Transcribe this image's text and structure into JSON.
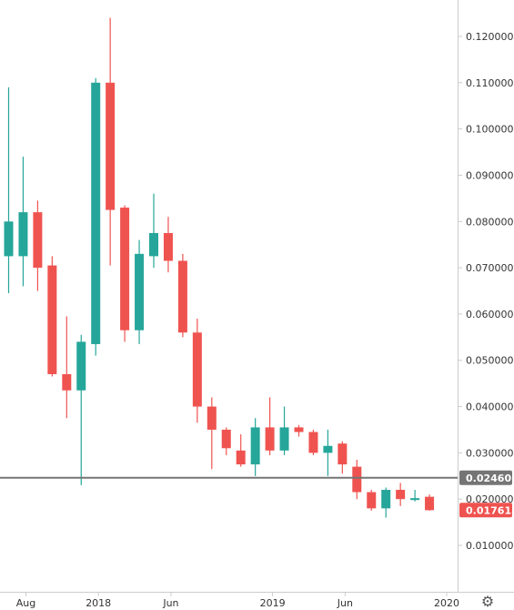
{
  "chart_data": {
    "type": "candlestick",
    "interval": "monthly",
    "ylim": [
      0.0,
      0.13
    ],
    "y_ticks": [
      "0.120000",
      "0.110000",
      "0.100000",
      "0.090000",
      "0.080000",
      "0.070000",
      "0.060000",
      "0.050000",
      "0.040000",
      "0.030000",
      "0.020000",
      "0.010000"
    ],
    "x_ticks": [
      {
        "label": "Aug",
        "index": 1
      },
      {
        "label": "2018",
        "index": 6
      },
      {
        "label": "Jun",
        "index": 11
      },
      {
        "label": "2019",
        "index": 18
      },
      {
        "label": "Jun",
        "index": 23
      },
      {
        "label": "2020",
        "index": 30
      }
    ],
    "candles": [
      {
        "o": 0.0725,
        "h": 0.109,
        "l": 0.0645,
        "c": 0.08
      },
      {
        "o": 0.0725,
        "h": 0.094,
        "l": 0.066,
        "c": 0.082
      },
      {
        "o": 0.082,
        "h": 0.0845,
        "l": 0.065,
        "c": 0.07
      },
      {
        "o": 0.0705,
        "h": 0.0725,
        "l": 0.0465,
        "c": 0.047
      },
      {
        "o": 0.047,
        "h": 0.0595,
        "l": 0.0375,
        "c": 0.0435
      },
      {
        "o": 0.0435,
        "h": 0.0555,
        "l": 0.023,
        "c": 0.054
      },
      {
        "o": 0.0535,
        "h": 0.111,
        "l": 0.051,
        "c": 0.11
      },
      {
        "o": 0.11,
        "h": 0.124,
        "l": 0.0705,
        "c": 0.0825
      },
      {
        "o": 0.083,
        "h": 0.0835,
        "l": 0.054,
        "c": 0.0565
      },
      {
        "o": 0.0565,
        "h": 0.076,
        "l": 0.0535,
        "c": 0.073
      },
      {
        "o": 0.0725,
        "h": 0.086,
        "l": 0.07,
        "c": 0.0775
      },
      {
        "o": 0.0775,
        "h": 0.081,
        "l": 0.069,
        "c": 0.0715
      },
      {
        "o": 0.0715,
        "h": 0.073,
        "l": 0.055,
        "c": 0.056
      },
      {
        "o": 0.056,
        "h": 0.059,
        "l": 0.0365,
        "c": 0.04
      },
      {
        "o": 0.04,
        "h": 0.042,
        "l": 0.0265,
        "c": 0.035
      },
      {
        "o": 0.035,
        "h": 0.0355,
        "l": 0.0295,
        "c": 0.031
      },
      {
        "o": 0.0305,
        "h": 0.034,
        "l": 0.027,
        "c": 0.0275
      },
      {
        "o": 0.0275,
        "h": 0.0375,
        "l": 0.025,
        "c": 0.0355
      },
      {
        "o": 0.0355,
        "h": 0.042,
        "l": 0.0295,
        "c": 0.0305
      },
      {
        "o": 0.0305,
        "h": 0.04,
        "l": 0.0295,
        "c": 0.0355
      },
      {
        "o": 0.0355,
        "h": 0.036,
        "l": 0.0335,
        "c": 0.0345
      },
      {
        "o": 0.0345,
        "h": 0.035,
        "l": 0.0295,
        "c": 0.03
      },
      {
        "o": 0.03,
        "h": 0.035,
        "l": 0.025,
        "c": 0.0315
      },
      {
        "o": 0.032,
        "h": 0.0325,
        "l": 0.0255,
        "c": 0.0275
      },
      {
        "o": 0.027,
        "h": 0.0285,
        "l": 0.02,
        "c": 0.0215
      },
      {
        "o": 0.0215,
        "h": 0.022,
        "l": 0.0175,
        "c": 0.018
      },
      {
        "o": 0.018,
        "h": 0.0225,
        "l": 0.016,
        "c": 0.022
      },
      {
        "o": 0.022,
        "h": 0.0235,
        "l": 0.0185,
        "c": 0.02
      },
      {
        "o": 0.0198,
        "h": 0.022,
        "l": 0.0195,
        "c": 0.0202
      },
      {
        "o": 0.0205,
        "h": 0.021,
        "l": 0.0175,
        "c": 0.0176
      }
    ],
    "horizontal_line": {
      "value": 0.024608,
      "label": "0.024608",
      "color": "#757575"
    },
    "last_price": {
      "value": 0.017613,
      "label": "0.017613",
      "color": "#ef5350"
    },
    "colors": {
      "up": "#26a69a",
      "down": "#ef5350",
      "axis": "#cccccc"
    }
  },
  "toolbar": {
    "settings_icon": "gear-icon"
  }
}
